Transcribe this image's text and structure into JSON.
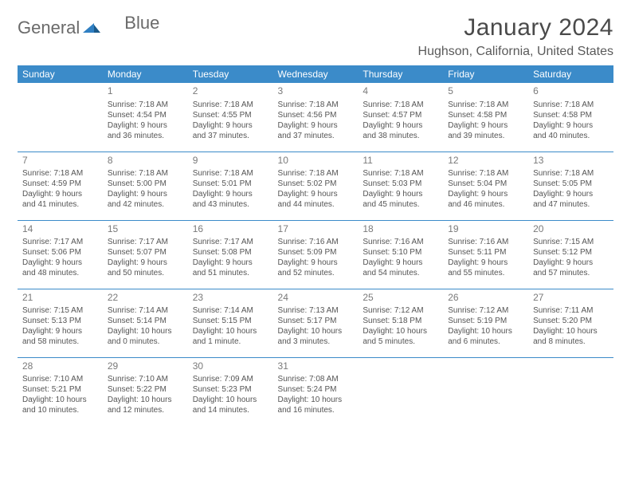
{
  "brand": {
    "word1": "General",
    "word2": "Blue"
  },
  "title": "January 2024",
  "location": "Hughson, California, United States",
  "colors": {
    "header_bg": "#3b8bc9",
    "header_text": "#ffffff",
    "rule": "#3b8bc9",
    "brand_gray": "#6a6a6a",
    "brand_blue": "#2f7fc2"
  },
  "weekday_headers": [
    "Sunday",
    "Monday",
    "Tuesday",
    "Wednesday",
    "Thursday",
    "Friday",
    "Saturday"
  ],
  "weeks": [
    [
      {
        "day": "",
        "sunrise": "",
        "sunset": "",
        "daylight1": "",
        "daylight2": ""
      },
      {
        "day": "1",
        "sunrise": "Sunrise: 7:18 AM",
        "sunset": "Sunset: 4:54 PM",
        "daylight1": "Daylight: 9 hours",
        "daylight2": "and 36 minutes."
      },
      {
        "day": "2",
        "sunrise": "Sunrise: 7:18 AM",
        "sunset": "Sunset: 4:55 PM",
        "daylight1": "Daylight: 9 hours",
        "daylight2": "and 37 minutes."
      },
      {
        "day": "3",
        "sunrise": "Sunrise: 7:18 AM",
        "sunset": "Sunset: 4:56 PM",
        "daylight1": "Daylight: 9 hours",
        "daylight2": "and 37 minutes."
      },
      {
        "day": "4",
        "sunrise": "Sunrise: 7:18 AM",
        "sunset": "Sunset: 4:57 PM",
        "daylight1": "Daylight: 9 hours",
        "daylight2": "and 38 minutes."
      },
      {
        "day": "5",
        "sunrise": "Sunrise: 7:18 AM",
        "sunset": "Sunset: 4:58 PM",
        "daylight1": "Daylight: 9 hours",
        "daylight2": "and 39 minutes."
      },
      {
        "day": "6",
        "sunrise": "Sunrise: 7:18 AM",
        "sunset": "Sunset: 4:58 PM",
        "daylight1": "Daylight: 9 hours",
        "daylight2": "and 40 minutes."
      }
    ],
    [
      {
        "day": "7",
        "sunrise": "Sunrise: 7:18 AM",
        "sunset": "Sunset: 4:59 PM",
        "daylight1": "Daylight: 9 hours",
        "daylight2": "and 41 minutes."
      },
      {
        "day": "8",
        "sunrise": "Sunrise: 7:18 AM",
        "sunset": "Sunset: 5:00 PM",
        "daylight1": "Daylight: 9 hours",
        "daylight2": "and 42 minutes."
      },
      {
        "day": "9",
        "sunrise": "Sunrise: 7:18 AM",
        "sunset": "Sunset: 5:01 PM",
        "daylight1": "Daylight: 9 hours",
        "daylight2": "and 43 minutes."
      },
      {
        "day": "10",
        "sunrise": "Sunrise: 7:18 AM",
        "sunset": "Sunset: 5:02 PM",
        "daylight1": "Daylight: 9 hours",
        "daylight2": "and 44 minutes."
      },
      {
        "day": "11",
        "sunrise": "Sunrise: 7:18 AM",
        "sunset": "Sunset: 5:03 PM",
        "daylight1": "Daylight: 9 hours",
        "daylight2": "and 45 minutes."
      },
      {
        "day": "12",
        "sunrise": "Sunrise: 7:18 AM",
        "sunset": "Sunset: 5:04 PM",
        "daylight1": "Daylight: 9 hours",
        "daylight2": "and 46 minutes."
      },
      {
        "day": "13",
        "sunrise": "Sunrise: 7:18 AM",
        "sunset": "Sunset: 5:05 PM",
        "daylight1": "Daylight: 9 hours",
        "daylight2": "and 47 minutes."
      }
    ],
    [
      {
        "day": "14",
        "sunrise": "Sunrise: 7:17 AM",
        "sunset": "Sunset: 5:06 PM",
        "daylight1": "Daylight: 9 hours",
        "daylight2": "and 48 minutes."
      },
      {
        "day": "15",
        "sunrise": "Sunrise: 7:17 AM",
        "sunset": "Sunset: 5:07 PM",
        "daylight1": "Daylight: 9 hours",
        "daylight2": "and 50 minutes."
      },
      {
        "day": "16",
        "sunrise": "Sunrise: 7:17 AM",
        "sunset": "Sunset: 5:08 PM",
        "daylight1": "Daylight: 9 hours",
        "daylight2": "and 51 minutes."
      },
      {
        "day": "17",
        "sunrise": "Sunrise: 7:16 AM",
        "sunset": "Sunset: 5:09 PM",
        "daylight1": "Daylight: 9 hours",
        "daylight2": "and 52 minutes."
      },
      {
        "day": "18",
        "sunrise": "Sunrise: 7:16 AM",
        "sunset": "Sunset: 5:10 PM",
        "daylight1": "Daylight: 9 hours",
        "daylight2": "and 54 minutes."
      },
      {
        "day": "19",
        "sunrise": "Sunrise: 7:16 AM",
        "sunset": "Sunset: 5:11 PM",
        "daylight1": "Daylight: 9 hours",
        "daylight2": "and 55 minutes."
      },
      {
        "day": "20",
        "sunrise": "Sunrise: 7:15 AM",
        "sunset": "Sunset: 5:12 PM",
        "daylight1": "Daylight: 9 hours",
        "daylight2": "and 57 minutes."
      }
    ],
    [
      {
        "day": "21",
        "sunrise": "Sunrise: 7:15 AM",
        "sunset": "Sunset: 5:13 PM",
        "daylight1": "Daylight: 9 hours",
        "daylight2": "and 58 minutes."
      },
      {
        "day": "22",
        "sunrise": "Sunrise: 7:14 AM",
        "sunset": "Sunset: 5:14 PM",
        "daylight1": "Daylight: 10 hours",
        "daylight2": "and 0 minutes."
      },
      {
        "day": "23",
        "sunrise": "Sunrise: 7:14 AM",
        "sunset": "Sunset: 5:15 PM",
        "daylight1": "Daylight: 10 hours",
        "daylight2": "and 1 minute."
      },
      {
        "day": "24",
        "sunrise": "Sunrise: 7:13 AM",
        "sunset": "Sunset: 5:17 PM",
        "daylight1": "Daylight: 10 hours",
        "daylight2": "and 3 minutes."
      },
      {
        "day": "25",
        "sunrise": "Sunrise: 7:12 AM",
        "sunset": "Sunset: 5:18 PM",
        "daylight1": "Daylight: 10 hours",
        "daylight2": "and 5 minutes."
      },
      {
        "day": "26",
        "sunrise": "Sunrise: 7:12 AM",
        "sunset": "Sunset: 5:19 PM",
        "daylight1": "Daylight: 10 hours",
        "daylight2": "and 6 minutes."
      },
      {
        "day": "27",
        "sunrise": "Sunrise: 7:11 AM",
        "sunset": "Sunset: 5:20 PM",
        "daylight1": "Daylight: 10 hours",
        "daylight2": "and 8 minutes."
      }
    ],
    [
      {
        "day": "28",
        "sunrise": "Sunrise: 7:10 AM",
        "sunset": "Sunset: 5:21 PM",
        "daylight1": "Daylight: 10 hours",
        "daylight2": "and 10 minutes."
      },
      {
        "day": "29",
        "sunrise": "Sunrise: 7:10 AM",
        "sunset": "Sunset: 5:22 PM",
        "daylight1": "Daylight: 10 hours",
        "daylight2": "and 12 minutes."
      },
      {
        "day": "30",
        "sunrise": "Sunrise: 7:09 AM",
        "sunset": "Sunset: 5:23 PM",
        "daylight1": "Daylight: 10 hours",
        "daylight2": "and 14 minutes."
      },
      {
        "day": "31",
        "sunrise": "Sunrise: 7:08 AM",
        "sunset": "Sunset: 5:24 PM",
        "daylight1": "Daylight: 10 hours",
        "daylight2": "and 16 minutes."
      },
      {
        "day": "",
        "sunrise": "",
        "sunset": "",
        "daylight1": "",
        "daylight2": ""
      },
      {
        "day": "",
        "sunrise": "",
        "sunset": "",
        "daylight1": "",
        "daylight2": ""
      },
      {
        "day": "",
        "sunrise": "",
        "sunset": "",
        "daylight1": "",
        "daylight2": ""
      }
    ]
  ]
}
